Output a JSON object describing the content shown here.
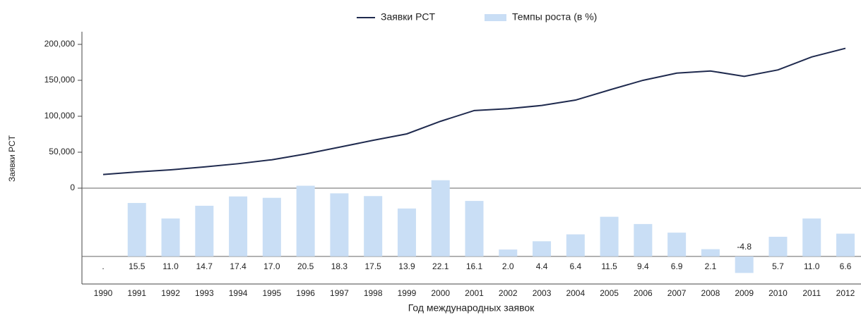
{
  "chart_data": {
    "type": "line_bar",
    "x_label": "Год международных заявок",
    "y_label": "Заявки PCT",
    "categories": [
      "1990",
      "1991",
      "1992",
      "1993",
      "1994",
      "1995",
      "1996",
      "1997",
      "1998",
      "1999",
      "2000",
      "2001",
      "2002",
      "2003",
      "2004",
      "2005",
      "2006",
      "2007",
      "2008",
      "2009",
      "2010",
      "2011",
      "2012"
    ],
    "series": [
      {
        "name": "Заявки PCT",
        "color": "#1f2a4e",
        "type": "line",
        "values": [
          19000,
          22500,
          25500,
          29500,
          34000,
          39500,
          47500,
          57000,
          66500,
          75500,
          93000,
          108000,
          110500,
          115000,
          122500,
          136500,
          150000,
          160000,
          163000,
          155500,
          164500,
          182500,
          194500
        ]
      },
      {
        "name": "Темпы роста (в %)",
        "color": "#c9def5",
        "type": "bar",
        "axis": "y2",
        "values": [
          null,
          15.5,
          11.0,
          14.7,
          17.4,
          17.0,
          20.5,
          18.3,
          17.5,
          13.9,
          22.1,
          16.1,
          2.0,
          4.4,
          6.4,
          11.5,
          9.4,
          6.9,
          2.1,
          -4.8,
          5.7,
          11.0,
          6.6
        ],
        "value_labels": [
          ".",
          "15.5",
          "11.0",
          "14.7",
          "17.4",
          "17.0",
          "20.5",
          "18.3",
          "17.5",
          "13.9",
          "22.1",
          "16.1",
          "2.0",
          "4.4",
          "6.4",
          "11.5",
          "9.4",
          "6.9",
          "2.1",
          "-4.8",
          "5.7",
          "11.0",
          "6.6"
        ]
      }
    ],
    "ylim": [
      0,
      217600
    ],
    "yticks": [
      0,
      {
        "value": 50000,
        "label": "50,000"
      },
      {
        "value": 100000,
        "label": "100,000"
      },
      {
        "value": 150000,
        "label": "150,000"
      },
      {
        "value": 200000,
        "label": "200,000"
      }
    ],
    "y2lim": [
      -8,
      24.3
    ]
  }
}
